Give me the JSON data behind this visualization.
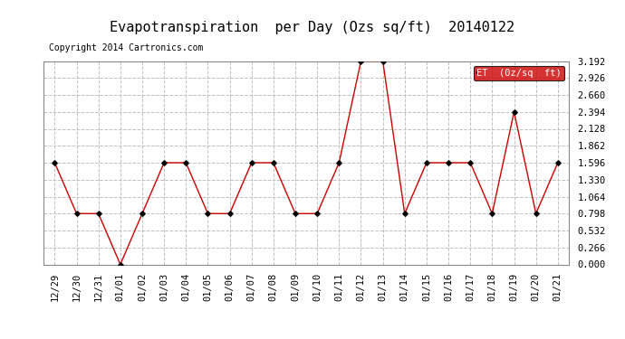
{
  "title": "Evapotranspiration  per Day (Ozs sq/ft)  20140122",
  "copyright": "Copyright 2014 Cartronics.com",
  "legend_label": "ET  (0z/sq  ft)",
  "x_labels": [
    "12/29",
    "12/30",
    "12/31",
    "01/01",
    "01/02",
    "01/03",
    "01/04",
    "01/05",
    "01/06",
    "01/07",
    "01/08",
    "01/09",
    "01/10",
    "01/11",
    "01/12",
    "01/13",
    "01/14",
    "01/15",
    "01/16",
    "01/17",
    "01/18",
    "01/19",
    "01/20",
    "01/21"
  ],
  "y_values": [
    1.596,
    0.798,
    0.798,
    0.0,
    0.798,
    1.596,
    1.596,
    0.798,
    0.798,
    1.596,
    1.596,
    0.798,
    0.798,
    1.596,
    3.192,
    3.192,
    0.798,
    1.596,
    1.596,
    1.596,
    0.798,
    2.394,
    0.798,
    1.596
  ],
  "y_ticks": [
    0.0,
    0.266,
    0.532,
    0.798,
    1.064,
    1.33,
    1.596,
    1.862,
    2.128,
    2.394,
    2.66,
    2.926,
    3.192
  ],
  "ylim": [
    0.0,
    3.192
  ],
  "line_color": "#cc0000",
  "marker_color": "#000000",
  "background_color": "#ffffff",
  "grid_color": "#c0c0c0",
  "legend_bg": "#cc0000",
  "legend_text_color": "#ffffff",
  "title_fontsize": 11,
  "copyright_fontsize": 7,
  "tick_fontsize": 7.5,
  "legend_fontsize": 7.5
}
